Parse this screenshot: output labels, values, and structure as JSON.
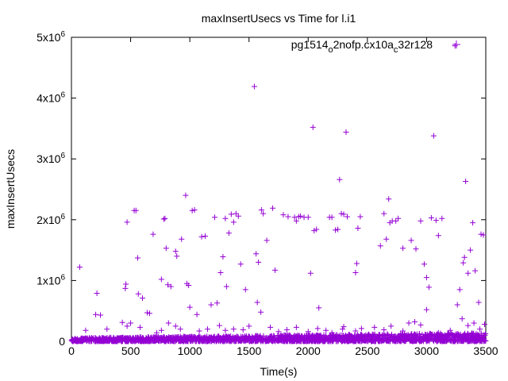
{
  "chart_data": {
    "type": "scatter",
    "title": "maxInsertUsecs vs Time for l.i1",
    "xlabel": "Time(s)",
    "ylabel": "maxInsertUsecs",
    "xlim": [
      0,
      3500
    ],
    "ylim": [
      0,
      5000000
    ],
    "x_ticks": [
      0,
      500,
      1000,
      1500,
      2000,
      2500,
      3000,
      3500
    ],
    "x_tick_labels": [
      "0",
      "500",
      "1000",
      "1500",
      "2000",
      "2500",
      "3000",
      "3500"
    ],
    "y_ticks": [
      0,
      1000000,
      2000000,
      3000000,
      4000000,
      5000000
    ],
    "y_tick_labels": [
      {
        "base": "0",
        "exp": ""
      },
      {
        "base": "1x10",
        "exp": "6"
      },
      {
        "base": "2x10",
        "exp": "6"
      },
      {
        "base": "3x10",
        "exp": "6"
      },
      {
        "base": "4x10",
        "exp": "6"
      },
      {
        "base": "5x10",
        "exp": "6"
      }
    ],
    "grid": false,
    "legend_position": "top-right",
    "series": [
      {
        "name": "pg1514_o2nofp.cx10a_c32r128",
        "legend_parts": [
          {
            "text": "pg1514",
            "sub": false
          },
          {
            "text": "o",
            "sub": true
          },
          {
            "text": "2nofp.cx10a",
            "sub": false
          },
          {
            "text": "c",
            "sub": true
          },
          {
            "text": "32r128",
            "sub": false
          }
        ],
        "color": "#9400d3",
        "marker": "plus",
        "points": [
          [
            70,
            1220000
          ],
          [
            215,
            790000
          ],
          [
            455,
            870000
          ],
          [
            460,
            940000
          ],
          [
            470,
            1960000
          ],
          [
            530,
            2150000
          ],
          [
            545,
            2150000
          ],
          [
            560,
            1370000
          ],
          [
            565,
            780000
          ],
          [
            600,
            710000
          ],
          [
            640,
            470000
          ],
          [
            660,
            460000
          ],
          [
            690,
            1760000
          ],
          [
            760,
            1020000
          ],
          [
            780,
            2010000
          ],
          [
            790,
            2020000
          ],
          [
            800,
            1530000
          ],
          [
            815,
            930000
          ],
          [
            840,
            900000
          ],
          [
            880,
            1480000
          ],
          [
            890,
            1400000
          ],
          [
            930,
            1680000
          ],
          [
            965,
            2400000
          ],
          [
            975,
            950000
          ],
          [
            990,
            920000
          ],
          [
            1020,
            2150000
          ],
          [
            1040,
            2160000
          ],
          [
            1100,
            1720000
          ],
          [
            1130,
            1730000
          ],
          [
            1180,
            600000
          ],
          [
            1210,
            2040000
          ],
          [
            1230,
            630000
          ],
          [
            1260,
            1130000
          ],
          [
            1280,
            1390000
          ],
          [
            1300,
            2020000
          ],
          [
            1310,
            900000
          ],
          [
            1330,
            1780000
          ],
          [
            1350,
            2090000
          ],
          [
            1370,
            1960000
          ],
          [
            1390,
            2100000
          ],
          [
            1410,
            2060000
          ],
          [
            1430,
            1270000
          ],
          [
            1470,
            850000
          ],
          [
            1545,
            4190000
          ],
          [
            1560,
            1440000
          ],
          [
            1570,
            640000
          ],
          [
            1580,
            1300000
          ],
          [
            1605,
            2160000
          ],
          [
            1620,
            2100000
          ],
          [
            1650,
            1660000
          ],
          [
            1700,
            2190000
          ],
          [
            1720,
            1170000
          ],
          [
            1790,
            2080000
          ],
          [
            1830,
            2050000
          ],
          [
            1885,
            2040000
          ],
          [
            1900,
            1980000
          ],
          [
            1920,
            2050000
          ],
          [
            1935,
            2060000
          ],
          [
            1965,
            2040000
          ],
          [
            2000,
            2040000
          ],
          [
            2020,
            1120000
          ],
          [
            2040,
            3520000
          ],
          [
            2050,
            1820000
          ],
          [
            2070,
            1840000
          ],
          [
            2090,
            550000
          ],
          [
            2180,
            2040000
          ],
          [
            2200,
            2040000
          ],
          [
            2230,
            1830000
          ],
          [
            2250,
            1840000
          ],
          [
            2265,
            2660000
          ],
          [
            2280,
            2100000
          ],
          [
            2300,
            2090000
          ],
          [
            2320,
            3440000
          ],
          [
            2330,
            2050000
          ],
          [
            2400,
            1130000
          ],
          [
            2410,
            1280000
          ],
          [
            2420,
            1860000
          ],
          [
            2440,
            2050000
          ],
          [
            2610,
            1570000
          ],
          [
            2640,
            2100000
          ],
          [
            2660,
            1680000
          ],
          [
            2680,
            2340000
          ],
          [
            2690,
            1950000
          ],
          [
            2710,
            1980000
          ],
          [
            2740,
            1980000
          ],
          [
            2760,
            2020000
          ],
          [
            2800,
            1530000
          ],
          [
            2870,
            1660000
          ],
          [
            2910,
            1520000
          ],
          [
            2950,
            1980000
          ],
          [
            2980,
            1270000
          ],
          [
            3000,
            1050000
          ],
          [
            3020,
            890000
          ],
          [
            3040,
            2030000
          ],
          [
            3060,
            3380000
          ],
          [
            3080,
            1990000
          ],
          [
            3100,
            1740000
          ],
          [
            3130,
            2020000
          ],
          [
            3280,
            850000
          ],
          [
            3310,
            1290000
          ],
          [
            3320,
            1380000
          ],
          [
            3330,
            2630000
          ],
          [
            3350,
            1120000
          ],
          [
            3370,
            1500000
          ],
          [
            3390,
            1950000
          ],
          [
            3410,
            1160000
          ],
          [
            3440,
            640000
          ],
          [
            3460,
            1760000
          ],
          [
            3480,
            1750000
          ],
          [
            3240,
            4860000
          ],
          [
            120,
            180000
          ],
          [
            205,
            440000
          ],
          [
            245,
            430000
          ],
          [
            300,
            200000
          ],
          [
            430,
            310000
          ],
          [
            470,
            250000
          ],
          [
            500,
            300000
          ],
          [
            580,
            230000
          ],
          [
            720,
            140000
          ],
          [
            760,
            180000
          ],
          [
            820,
            300000
          ],
          [
            880,
            250000
          ],
          [
            920,
            200000
          ],
          [
            1000,
            560000
          ],
          [
            1060,
            440000
          ],
          [
            1080,
            170000
          ],
          [
            1150,
            200000
          ],
          [
            1250,
            260000
          ],
          [
            1300,
            180000
          ],
          [
            1370,
            200000
          ],
          [
            1450,
            190000
          ],
          [
            1500,
            250000
          ],
          [
            1600,
            480000
          ],
          [
            1680,
            230000
          ],
          [
            1750,
            160000
          ],
          [
            1820,
            190000
          ],
          [
            1900,
            230000
          ],
          [
            2000,
            160000
          ],
          [
            2080,
            210000
          ],
          [
            2150,
            180000
          ],
          [
            2200,
            140000
          ],
          [
            2290,
            200000
          ],
          [
            2300,
            240000
          ],
          [
            2400,
            170000
          ],
          [
            2450,
            210000
          ],
          [
            2560,
            230000
          ],
          [
            2640,
            190000
          ],
          [
            2700,
            250000
          ],
          [
            2800,
            170000
          ],
          [
            2850,
            300000
          ],
          [
            2900,
            320000
          ],
          [
            2950,
            270000
          ],
          [
            3000,
            520000
          ],
          [
            3100,
            140000
          ],
          [
            3200,
            180000
          ],
          [
            3260,
            600000
          ],
          [
            3300,
            370000
          ],
          [
            3350,
            260000
          ],
          [
            3400,
            300000
          ],
          [
            3450,
            200000
          ],
          [
            3490,
            280000
          ]
        ],
        "baseline_band": {
          "x_range": [
            0,
            3500
          ],
          "y_low": 0,
          "y_high": 140000,
          "density_per_100s": 60
        }
      }
    ]
  }
}
